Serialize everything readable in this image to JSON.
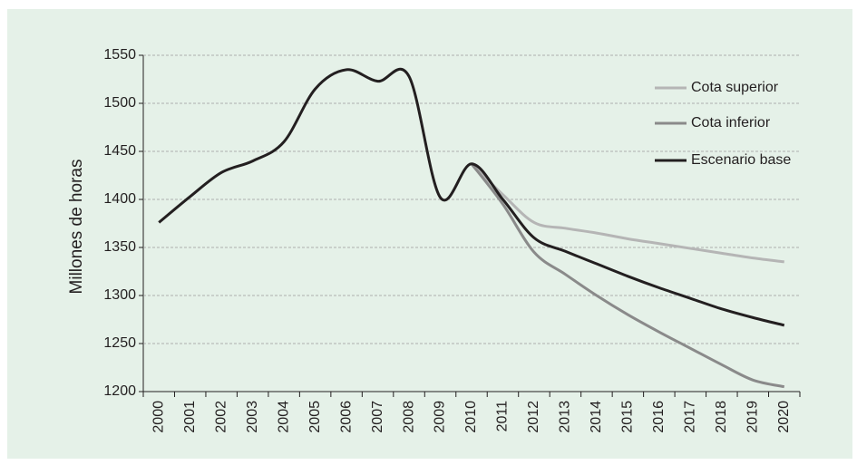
{
  "chart_data": {
    "type": "line",
    "y_label": "Millones de horas",
    "categories": [
      "2000",
      "2001",
      "2002",
      "2003",
      "2004",
      "2005",
      "2006",
      "2007",
      "2008",
      "2009",
      "2010",
      "2011",
      "2012",
      "2013",
      "2014",
      "2015",
      "2016",
      "2017",
      "2018",
      "2019",
      "2020"
    ],
    "series": [
      {
        "name": "Cota superior",
        "color": "#b5b5b5",
        "values": [
          null,
          null,
          null,
          null,
          null,
          null,
          null,
          null,
          null,
          null,
          1437,
          1405,
          1376,
          1370,
          1365,
          1359,
          1354,
          1349,
          1344,
          1339,
          1335
        ]
      },
      {
        "name": "Cota inferior",
        "color": "#8a8a8a",
        "values": [
          null,
          null,
          null,
          null,
          null,
          null,
          null,
          null,
          null,
          null,
          1437,
          1395,
          1345,
          1322,
          1300,
          1280,
          1262,
          1245,
          1228,
          1212,
          1205
        ]
      },
      {
        "name": "Escenario base",
        "color": "#231f20",
        "values": [
          1376,
          1403,
          1428,
          1440,
          1460,
          1515,
          1535,
          1523,
          1528,
          1402,
          1437,
          1400,
          1360,
          1346,
          1333,
          1320,
          1308,
          1297,
          1286,
          1277,
          1269
        ]
      }
    ],
    "ylim": [
      1200,
      1550
    ],
    "yticks": [
      1200,
      1250,
      1300,
      1350,
      1400,
      1450,
      1500,
      1550
    ],
    "grid": true
  }
}
